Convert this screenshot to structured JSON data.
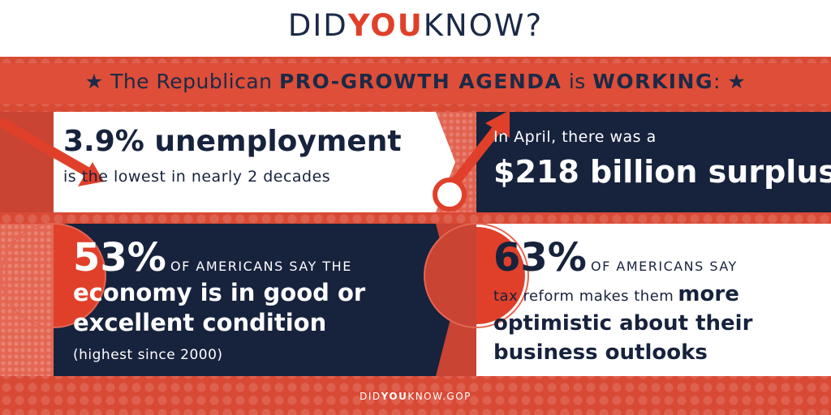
{
  "header": {
    "logo_did": "DID",
    "logo_you": "YOU",
    "logo_know": "KNOW?"
  },
  "banner": {
    "star_left": "★",
    "prefix": "The Republican",
    "highlight": "PRO-GROWTH AGENDA",
    "middle": "is",
    "highlight2": "WORKING",
    "suffix": ":",
    "star_right": "★"
  },
  "facts": {
    "unemployment": {
      "headline": "3.9% unemployment",
      "sub": "is the lowest in nearly 2 decades"
    },
    "surplus": {
      "intro": "In April, there was a",
      "headline": "$218 billion surplus"
    },
    "economy": {
      "stat": "53%",
      "stat_caption": "OF AMERICANS SAY THE",
      "line1": "economy is in good or",
      "line2": "excellent condition",
      "note": "(highest since 2000)"
    },
    "optimism": {
      "stat": "63%",
      "stat_caption": "OF AMERICANS SAY",
      "line1_plain": "tax reform makes them",
      "line1_bold": "more",
      "line2": "optimistic about their",
      "line3": "business outlooks"
    }
  },
  "footer": {
    "did": "DID",
    "you": "YOU",
    "rest": "KNOW.GOP"
  },
  "colors": {
    "navy": "#17223d",
    "red": "#d94a35",
    "accent": "#e0402a",
    "white": "#ffffff"
  }
}
